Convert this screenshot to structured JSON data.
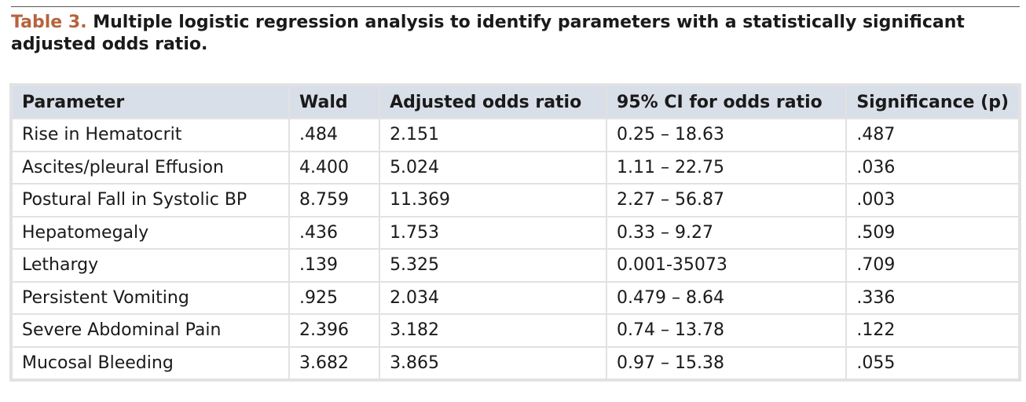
{
  "caption": {
    "label": "Table 3.",
    "text": "Multiple logistic regression analysis to identify parameters with a statistically significant adjusted odds ratio."
  },
  "table": {
    "headers": [
      "Parameter",
      "Wald",
      "Adjusted odds ratio",
      "95% CI for odds ratio",
      "Significance (p)"
    ],
    "rows": [
      [
        "Rise in Hematocrit",
        ".484",
        "2.151",
        "0.25 – 18.63",
        ".487"
      ],
      [
        "Ascites/pleural Effusion",
        "4.400",
        "5.024",
        "1.11 – 22.75",
        ".036"
      ],
      [
        "Postural Fall in Systolic BP",
        "8.759",
        "11.369",
        "2.27 – 56.87",
        ".003"
      ],
      [
        "Hepatomegaly",
        ".436",
        "1.753",
        "0.33 – 9.27",
        ".509"
      ],
      [
        "Lethargy",
        ".139",
        "5.325",
        "0.001-35073",
        ".709"
      ],
      [
        "Persistent Vomiting",
        ".925",
        "2.034",
        "0.479 – 8.64",
        ".336"
      ],
      [
        "Severe Abdominal Pain",
        "2.396",
        "3.182",
        "0.74 – 13.78",
        ".122"
      ],
      [
        "Mucosal Bleeding",
        "3.682",
        "3.865",
        "0.97 – 15.38",
        ".055"
      ]
    ]
  },
  "colors": {
    "label": "#b5643c",
    "header_bg": "#d9dfe8",
    "grid": "#e2e2e2"
  }
}
